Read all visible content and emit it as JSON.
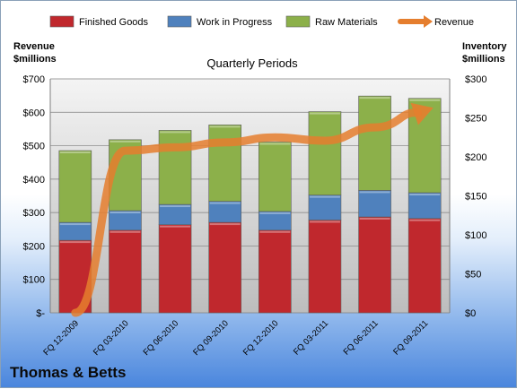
{
  "chart_data": {
    "type": "bar",
    "stacked": true,
    "subtitle": "Quarterly Periods",
    "left_axis_title": [
      "Revenue",
      "$millions"
    ],
    "right_axis_title": [
      "Inventory",
      "$millions"
    ],
    "categories": [
      "FQ 12-2009",
      "FQ 03-2010",
      "FQ 06-2010",
      "FQ 09-2010",
      "FQ 12-2010",
      "FQ 03-2011",
      "FQ 06-2011",
      "FQ 09-2011"
    ],
    "left_axis": {
      "range": [
        0,
        700
      ],
      "ticks": [
        "$-",
        "$100",
        "$200",
        "$300",
        "$400",
        "$500",
        "$600",
        "$700"
      ],
      "tick_values": [
        0,
        100,
        200,
        300,
        400,
        500,
        600,
        700
      ]
    },
    "right_axis": {
      "range": [
        0,
        300
      ],
      "ticks": [
        "$0",
        "$50",
        "$100",
        "$150",
        "$200",
        "$250",
        "$300"
      ],
      "tick_values": [
        0,
        50,
        100,
        150,
        200,
        250,
        300
      ]
    },
    "series": [
      {
        "name": "Finished Goods",
        "axis": "right",
        "color": "#c0282d",
        "values": [
          93,
          106,
          113,
          116,
          106,
          119,
          123,
          121
        ]
      },
      {
        "name": "Work in Progress",
        "axis": "right",
        "color": "#4f81bd",
        "values": [
          23,
          25,
          26,
          27,
          24,
          32,
          34,
          33
        ]
      },
      {
        "name": "Raw Materials",
        "axis": "right",
        "color": "#8cb04a",
        "values": [
          92,
          91,
          95,
          98,
          89,
          107,
          121,
          121
        ]
      },
      {
        "name": "Revenue",
        "axis": "left",
        "type": "line",
        "color": "#e57e2e",
        "values": [
          0,
          485,
          495,
          510,
          525,
          515,
          555,
          605
        ]
      }
    ],
    "gridlines": true,
    "legend_position": "top"
  },
  "company_name": "Thomas & Betts"
}
